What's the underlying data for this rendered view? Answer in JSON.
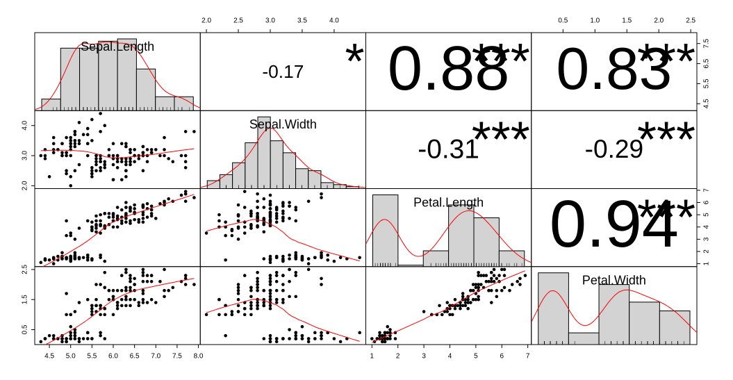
{
  "chart_data": {
    "type": "pairs",
    "variables": [
      {
        "name": "Sepal.Length",
        "lim": [
          4.156,
          8.044
        ],
        "xticks": [
          4.5,
          {
            "value": 5,
            "label": "5.0"
          },
          5.5,
          {
            "value": 6,
            "label": "6.0"
          },
          6.5,
          {
            "value": 7,
            "label": "7.0"
          },
          7.5,
          {
            "value": 8,
            "label": "8.0"
          }
        ],
        "yticks": [
          4.5,
          5.5,
          6.5,
          7.5
        ],
        "values": [
          5.1,
          4.9,
          4.7,
          4.6,
          5.0,
          5.4,
          4.6,
          5.0,
          4.4,
          4.9,
          5.4,
          4.8,
          4.8,
          4.3,
          5.8,
          5.7,
          5.4,
          5.1,
          5.7,
          5.1,
          5.4,
          5.1,
          4.6,
          5.1,
          4.8,
          5.0,
          5.0,
          5.2,
          5.2,
          4.7,
          4.8,
          5.4,
          5.2,
          5.5,
          4.9,
          5.0,
          5.5,
          4.9,
          4.4,
          5.1,
          5.0,
          4.5,
          4.4,
          5.0,
          5.1,
          4.8,
          5.1,
          4.6,
          5.3,
          5.0,
          7.0,
          6.4,
          6.9,
          5.5,
          6.5,
          5.7,
          6.3,
          4.9,
          6.6,
          5.2,
          5.0,
          5.9,
          6.0,
          6.1,
          5.6,
          6.7,
          5.6,
          5.8,
          6.2,
          5.6,
          5.9,
          6.1,
          6.3,
          6.1,
          6.4,
          6.6,
          6.8,
          6.7,
          6.0,
          5.7,
          5.5,
          5.5,
          5.8,
          6.0,
          5.4,
          6.0,
          6.7,
          6.3,
          5.6,
          5.5,
          5.5,
          6.1,
          5.8,
          5.0,
          5.6,
          5.7,
          5.7,
          6.2,
          5.1,
          5.7,
          6.3,
          5.8,
          7.1,
          6.3,
          6.5,
          7.6,
          4.9,
          7.3,
          6.7,
          7.2,
          6.5,
          6.4,
          6.8,
          5.7,
          5.8,
          6.4,
          6.5,
          7.7,
          7.7,
          6.0,
          6.9,
          5.6,
          7.7,
          6.3,
          6.7,
          7.2,
          6.2,
          6.1,
          6.4,
          7.2,
          7.4,
          7.9,
          6.4,
          6.3,
          6.1,
          7.7,
          6.3,
          6.4,
          6.0,
          6.9,
          6.7,
          6.9,
          5.8,
          6.8,
          6.7,
          6.7,
          6.3,
          6.5,
          6.2,
          5.9
        ]
      },
      {
        "name": "Sepal.Width",
        "lim": [
          1.904,
          4.496
        ],
        "xticks": [
          {
            "value": 2,
            "label": "2.0"
          },
          2.5,
          {
            "value": 3,
            "label": "3.0"
          },
          3.5,
          {
            "value": 4,
            "label": "4.0"
          }
        ],
        "yticks": [
          {
            "value": 2,
            "label": "2.0"
          },
          {
            "value": 3,
            "label": "3.0"
          },
          {
            "value": 4,
            "label": "4.0"
          }
        ],
        "values": [
          3.5,
          3.0,
          3.2,
          3.1,
          3.6,
          3.9,
          3.4,
          3.4,
          2.9,
          3.1,
          3.7,
          3.4,
          3.0,
          3.0,
          4.0,
          4.4,
          3.9,
          3.5,
          3.8,
          3.8,
          3.4,
          3.7,
          3.6,
          3.3,
          3.4,
          3.0,
          3.4,
          3.5,
          3.4,
          3.2,
          3.1,
          3.4,
          4.1,
          4.2,
          3.1,
          3.2,
          3.5,
          3.6,
          3.0,
          3.4,
          3.5,
          2.3,
          3.2,
          3.5,
          3.8,
          3.0,
          3.8,
          3.2,
          3.7,
          3.3,
          3.2,
          3.2,
          3.1,
          2.3,
          2.8,
          2.8,
          3.3,
          2.4,
          2.9,
          2.7,
          2.0,
          3.0,
          2.2,
          2.9,
          2.9,
          3.1,
          3.0,
          2.7,
          2.2,
          2.5,
          3.2,
          2.8,
          2.5,
          2.8,
          2.9,
          3.0,
          2.8,
          3.0,
          2.9,
          2.6,
          2.4,
          2.4,
          2.7,
          2.7,
          3.0,
          3.4,
          3.1,
          2.3,
          3.0,
          2.5,
          2.6,
          3.0,
          2.6,
          2.3,
          2.7,
          3.0,
          2.9,
          2.9,
          2.5,
          2.8,
          3.3,
          2.7,
          3.0,
          2.9,
          3.0,
          3.0,
          2.5,
          2.9,
          2.5,
          3.6,
          3.2,
          2.7,
          3.0,
          2.5,
          2.8,
          3.2,
          3.0,
          3.8,
          2.6,
          2.2,
          3.2,
          2.8,
          2.8,
          2.7,
          3.3,
          3.2,
          2.8,
          3.0,
          2.8,
          3.0,
          2.8,
          3.8,
          2.8,
          2.8,
          2.6,
          3.0,
          3.4,
          3.1,
          3.0,
          3.1,
          3.1,
          3.1,
          2.7,
          3.2,
          3.3,
          3.0,
          2.5,
          3.0,
          3.4,
          3.0
        ]
      },
      {
        "name": "Petal.Length",
        "lim": [
          0.764,
          7.136
        ],
        "xticks": [
          1,
          2,
          3,
          4,
          5,
          6,
          7
        ],
        "yticks": [
          1,
          2,
          3,
          4,
          5,
          6,
          7
        ],
        "values": [
          1.4,
          1.4,
          1.3,
          1.5,
          1.4,
          1.7,
          1.4,
          1.5,
          1.4,
          1.5,
          1.5,
          1.6,
          1.4,
          1.1,
          1.2,
          1.5,
          1.3,
          1.4,
          1.7,
          1.5,
          1.7,
          1.5,
          1.0,
          1.7,
          1.9,
          1.6,
          1.6,
          1.5,
          1.4,
          1.6,
          1.6,
          1.5,
          1.5,
          1.4,
          1.5,
          1.2,
          1.3,
          1.4,
          1.3,
          1.5,
          1.3,
          1.3,
          1.3,
          1.6,
          1.9,
          1.4,
          1.6,
          1.4,
          1.5,
          1.4,
          4.7,
          4.5,
          4.9,
          4.0,
          4.6,
          4.5,
          4.7,
          3.3,
          4.6,
          3.9,
          3.5,
          4.2,
          4.0,
          4.7,
          3.6,
          4.4,
          4.5,
          4.1,
          4.5,
          3.9,
          4.8,
          4.0,
          4.9,
          4.7,
          4.3,
          4.4,
          4.8,
          5.0,
          4.5,
          3.5,
          3.8,
          3.7,
          3.9,
          5.1,
          4.5,
          4.5,
          4.7,
          4.4,
          4.1,
          4.0,
          4.4,
          4.6,
          4.0,
          3.3,
          4.2,
          4.2,
          4.2,
          4.3,
          3.0,
          4.1,
          6.0,
          5.1,
          5.9,
          5.6,
          5.8,
          6.6,
          4.5,
          6.3,
          5.8,
          6.1,
          5.1,
          5.3,
          5.5,
          5.0,
          5.1,
          5.3,
          5.5,
          6.7,
          6.9,
          5.0,
          5.7,
          4.9,
          6.7,
          4.9,
          5.7,
          6.0,
          4.8,
          4.9,
          5.6,
          5.8,
          6.1,
          6.4,
          5.6,
          5.1,
          5.6,
          6.1,
          5.6,
          5.5,
          4.8,
          5.4,
          5.6,
          5.1,
          5.1,
          5.9,
          5.7,
          5.2,
          5.0,
          5.2,
          5.4,
          5.1
        ]
      },
      {
        "name": "Petal.Width",
        "lim": [
          0.004,
          2.596
        ],
        "xticks": [
          0.5,
          {
            "value": 1,
            "label": "1.0"
          },
          1.5,
          {
            "value": 2,
            "label": "2.0"
          },
          2.5
        ],
        "yticks": [
          0.5,
          1.5,
          2.5
        ],
        "values": [
          0.2,
          0.2,
          0.2,
          0.2,
          0.2,
          0.4,
          0.3,
          0.2,
          0.2,
          0.1,
          0.2,
          0.2,
          0.1,
          0.1,
          0.2,
          0.4,
          0.4,
          0.3,
          0.3,
          0.3,
          0.2,
          0.4,
          0.2,
          0.5,
          0.2,
          0.2,
          0.4,
          0.2,
          0.2,
          0.2,
          0.2,
          0.4,
          0.1,
          0.2,
          0.2,
          0.2,
          0.2,
          0.1,
          0.2,
          0.2,
          0.3,
          0.3,
          0.2,
          0.6,
          0.4,
          0.3,
          0.2,
          0.2,
          0.2,
          0.2,
          1.4,
          1.5,
          1.5,
          1.3,
          1.5,
          1.3,
          1.6,
          1.0,
          1.3,
          1.4,
          1.0,
          1.5,
          1.0,
          1.4,
          1.3,
          1.4,
          1.5,
          1.0,
          1.5,
          1.1,
          1.8,
          1.3,
          1.5,
          1.2,
          1.3,
          1.4,
          1.4,
          1.7,
          1.5,
          1.0,
          1.1,
          1.0,
          1.2,
          1.6,
          1.5,
          1.6,
          1.5,
          1.3,
          1.3,
          1.3,
          1.2,
          1.4,
          1.2,
          1.0,
          1.3,
          1.2,
          1.3,
          1.3,
          1.1,
          1.3,
          2.5,
          1.9,
          2.1,
          1.8,
          2.2,
          2.1,
          1.7,
          1.8,
          1.8,
          2.5,
          2.0,
          1.9,
          2.1,
          2.0,
          2.4,
          2.3,
          1.8,
          2.2,
          2.3,
          1.5,
          2.3,
          2.0,
          2.0,
          1.8,
          2.1,
          1.8,
          1.8,
          1.8,
          2.1,
          1.6,
          1.9,
          2.0,
          2.2,
          1.5,
          1.4,
          2.3,
          2.4,
          1.8,
          1.8,
          2.1,
          2.4,
          2.3,
          1.9,
          2.3,
          2.5,
          2.3,
          1.9,
          2.0,
          2.3,
          1.8
        ]
      }
    ],
    "histograms": [
      {
        "bins": [
          4,
          4.5,
          5,
          5.5,
          6,
          6.5,
          7,
          7.5,
          8
        ],
        "counts": [
          5,
          27,
          27,
          30,
          31,
          18,
          6,
          6
        ]
      },
      {
        "bins": [
          2,
          2.2,
          2.4,
          2.6,
          2.8,
          3,
          3.2,
          3.4,
          3.6,
          3.8,
          4,
          4.2,
          4.4
        ],
        "counts": [
          4,
          7,
          13,
          23,
          36,
          24,
          18,
          10,
          9,
          3,
          2,
          1
        ]
      },
      {
        "bins": [
          1,
          2,
          3,
          4,
          5,
          6,
          7
        ],
        "counts": [
          50,
          1,
          11,
          43,
          34,
          11
        ]
      },
      {
        "bins": [
          0,
          0.5,
          1,
          1.5,
          2,
          2.5
        ],
        "counts": [
          49,
          8,
          41,
          29,
          23
        ]
      }
    ],
    "correlations": [
      -0.17,
      0.88,
      0.83,
      -0.31,
      -0.29,
      0.94
    ],
    "significance": [
      "*",
      "***",
      "***",
      "***",
      "***",
      "***"
    ],
    "point_color": "#000000",
    "smooth_color": "#ff0000",
    "significance_color": "#ff0000",
    "bar_color": "#d3d3d3"
  }
}
